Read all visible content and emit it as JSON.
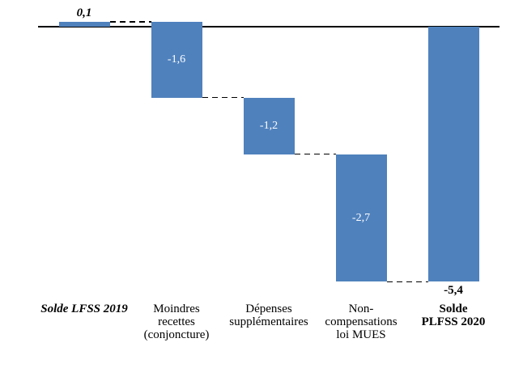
{
  "chart_data": {
    "type": "bar",
    "subtype": "waterfall",
    "title": "",
    "background": "#FFFFFF",
    "zero_line": true,
    "ylim": [
      -5.6,
      0.5
    ],
    "grid": false,
    "legend": false,
    "categories": [
      "Solde LFSS 2019",
      "Moindres recettes (conjoncture)",
      "Dépenses supplémentaires",
      "Non-compensations loi MUES",
      "Solde PLFSS 2020"
    ],
    "values": [
      0.1,
      -1.6,
      -1.2,
      -2.7,
      -5.4
    ],
    "bars": [
      {
        "category_lines": [
          "Solde LFSS 2019"
        ],
        "category_style": "bold-italic",
        "value": 0.1,
        "value_label": "0,1",
        "start": 0,
        "end": 0.1,
        "value_label_placement": "above",
        "value_label_style": "bold-italic",
        "value_label_color": "#000000"
      },
      {
        "category_lines": [
          "Moindres",
          "recettes",
          "(conjoncture)"
        ],
        "category_style": "regular",
        "value": -1.6,
        "value_label": "-1,6",
        "start": 0.1,
        "end": -1.5,
        "value_label_placement": "inside",
        "value_label_style": "regular",
        "value_label_color": "#FFFFFF"
      },
      {
        "category_lines": [
          "Dépenses",
          "supplémentaires"
        ],
        "category_style": "regular",
        "value": -1.2,
        "value_label": "-1,2",
        "start": -1.5,
        "end": -2.7,
        "value_label_placement": "inside",
        "value_label_style": "regular",
        "value_label_color": "#FFFFFF"
      },
      {
        "category_lines": [
          "Non-",
          "compensations",
          "loi MUES"
        ],
        "category_style": "regular",
        "value": -2.7,
        "value_label": "-2,7",
        "start": -2.7,
        "end": -5.4,
        "value_label_placement": "inside",
        "value_label_style": "regular",
        "value_label_color": "#FFFFFF"
      },
      {
        "category_lines": [
          "Solde",
          "PLFSS 2020"
        ],
        "category_style": "bold",
        "value": -5.4,
        "value_label": "-5,4",
        "start": 0,
        "end": -5.4,
        "value_label_placement": "below",
        "value_label_style": "bold",
        "value_label_color": "#000000"
      }
    ],
    "connectors": [
      {
        "from_bar": 0,
        "to_bar": 1,
        "level": 0.1
      },
      {
        "from_bar": 1,
        "to_bar": 2,
        "level": -1.5
      },
      {
        "from_bar": 2,
        "to_bar": 3,
        "level": -2.7
      },
      {
        "from_bar": 3,
        "to_bar": 4,
        "level": -5.4
      }
    ],
    "colors": {
      "bar": "#4F81BD",
      "axis": "#000000",
      "connector": "#000000",
      "inside_label": "#FFFFFF",
      "outside_label": "#000000"
    }
  }
}
